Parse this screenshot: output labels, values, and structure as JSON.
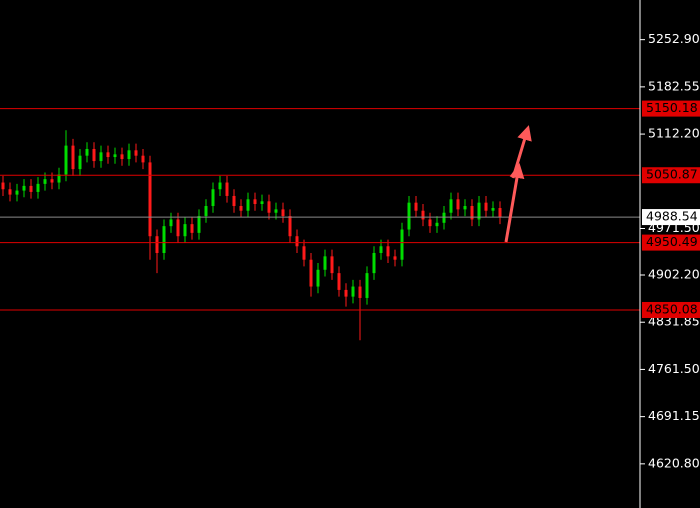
{
  "chart_data": {
    "type": "candlestick",
    "open": [
      5040,
      5030,
      5022,
      5028,
      5035,
      5026,
      5038,
      5045,
      5040,
      5052,
      5095,
      5060,
      5080,
      5090,
      5072,
      5085,
      5078,
      5082,
      5075,
      5088,
      5080,
      5070,
      4960,
      4935,
      4975,
      4985,
      4960,
      4978,
      4965,
      4990,
      5005,
      5030,
      5040,
      5020,
      5005,
      4998,
      5015,
      5008,
      5012,
      4995,
      5000,
      4990,
      4960,
      4945,
      4925,
      4885,
      4910,
      4930,
      4905,
      4880,
      4870,
      4885,
      4868,
      4905,
      4935,
      4945,
      4930,
      4925,
      4970,
      5010,
      4998,
      4985,
      4975,
      4980,
      4995,
      5015,
      5000,
      5005,
      4985,
      5010,
      4998,
      5002
    ],
    "high": [
      5050,
      5040,
      5038,
      5045,
      5045,
      5048,
      5055,
      5055,
      5062,
      5118,
      5105,
      5090,
      5100,
      5100,
      5095,
      5095,
      5092,
      5092,
      5098,
      5098,
      5090,
      5080,
      4970,
      4985,
      4995,
      4995,
      4988,
      4988,
      5000,
      5015,
      5040,
      5050,
      5050,
      5030,
      5015,
      5025,
      5025,
      5022,
      5022,
      5010,
      5010,
      5000,
      4970,
      4955,
      4935,
      4920,
      4940,
      4940,
      4915,
      4890,
      4895,
      4895,
      4915,
      4945,
      4955,
      4955,
      4940,
      4980,
      5020,
      5020,
      5008,
      4995,
      4990,
      5005,
      5025,
      5025,
      5015,
      5015,
      5020,
      5020,
      5012,
      5012
    ],
    "low": [
      5020,
      5012,
      5012,
      5018,
      5016,
      5016,
      5028,
      5030,
      5030,
      5042,
      5050,
      5050,
      5070,
      5062,
      5062,
      5068,
      5068,
      5065,
      5065,
      5070,
      5060,
      4925,
      4905,
      4925,
      4965,
      4950,
      4950,
      4955,
      4955,
      4980,
      4995,
      5020,
      5010,
      4995,
      4988,
      4988,
      4998,
      4998,
      4985,
      4985,
      4980,
      4950,
      4935,
      4915,
      4870,
      4875,
      4900,
      4895,
      4870,
      4855,
      4860,
      4805,
      4858,
      4895,
      4925,
      4920,
      4915,
      4915,
      4960,
      4988,
      4975,
      4965,
      4965,
      4970,
      4985,
      4990,
      4990,
      4975,
      4975,
      4988,
      4988,
      4978
    ],
    "close": [
      5030,
      5022,
      5028,
      5035,
      5026,
      5038,
      5045,
      5040,
      5052,
      5095,
      5060,
      5080,
      5090,
      5072,
      5085,
      5078,
      5082,
      5075,
      5088,
      5080,
      5070,
      4960,
      4935,
      4975,
      4985,
      4960,
      4978,
      4965,
      4990,
      5005,
      5030,
      5040,
      5020,
      5005,
      4998,
      5015,
      5008,
      5012,
      4995,
      5000,
      4990,
      4960,
      4945,
      4925,
      4885,
      4910,
      4930,
      4905,
      4880,
      4870,
      4885,
      4868,
      4905,
      4935,
      4945,
      4930,
      4925,
      4970,
      5010,
      4998,
      4985,
      4975,
      4980,
      4995,
      5015,
      5000,
      5005,
      4985,
      5010,
      4998,
      5002,
      4988.54
    ],
    "up_color": "#00dd00",
    "down_color": "#ff1a1a",
    "ylim": [
      4555,
      5312
    ],
    "yticks": [
      {
        "value": 5252.9,
        "label": "5252.90"
      },
      5182.55,
      {
        "value": 5112.2,
        "label": "5112.20"
      },
      {
        "value": 4971.5,
        "label": "4971.50"
      },
      {
        "value": 4902.2,
        "label": "4902.20"
      },
      4831.85,
      {
        "value": 4761.5,
        "label": "4761.50"
      },
      4691.15,
      {
        "value": 4620.8,
        "label": "4620.80"
      }
    ],
    "levels": [
      5150.18,
      5050.87,
      4950.49,
      4850.08
    ],
    "level_color": "#e00000",
    "current_price": 4988.54
  }
}
